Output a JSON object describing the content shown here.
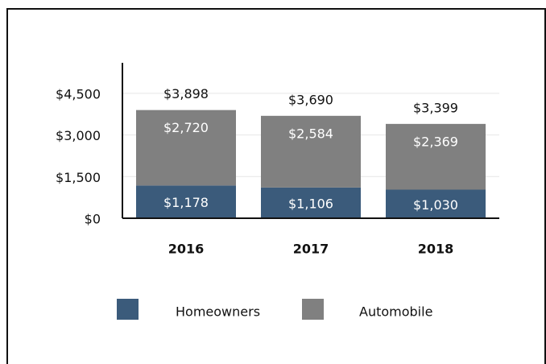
{
  "chart_data": {
    "type": "stacked_bar",
    "categories": [
      "2016",
      "2017",
      "2018"
    ],
    "series": [
      {
        "name": "Homeowners",
        "color": "#3b5b7b",
        "values": [
          1178,
          1106,
          1030
        ],
        "value_labels": [
          "$1,178",
          "$1,106",
          "$1,030"
        ]
      },
      {
        "name": "Automobile",
        "color": "#808080",
        "values": [
          2720,
          2584,
          2369
        ],
        "value_labels": [
          "$2,720",
          "$2,584",
          "$2,369"
        ]
      }
    ],
    "totals": [
      3898,
      3690,
      3399
    ],
    "total_labels": [
      "$3,898",
      "$3,690",
      "$3,399"
    ],
    "ylim": [
      0,
      5600
    ],
    "yticks": [
      {
        "value": 0,
        "label": "$0"
      },
      {
        "value": 1500,
        "label": "$1,500"
      },
      {
        "value": 3000,
        "label": "$3,000"
      },
      {
        "value": 4500,
        "label": "$4,500"
      }
    ],
    "grid": true,
    "legend": "bottom"
  }
}
